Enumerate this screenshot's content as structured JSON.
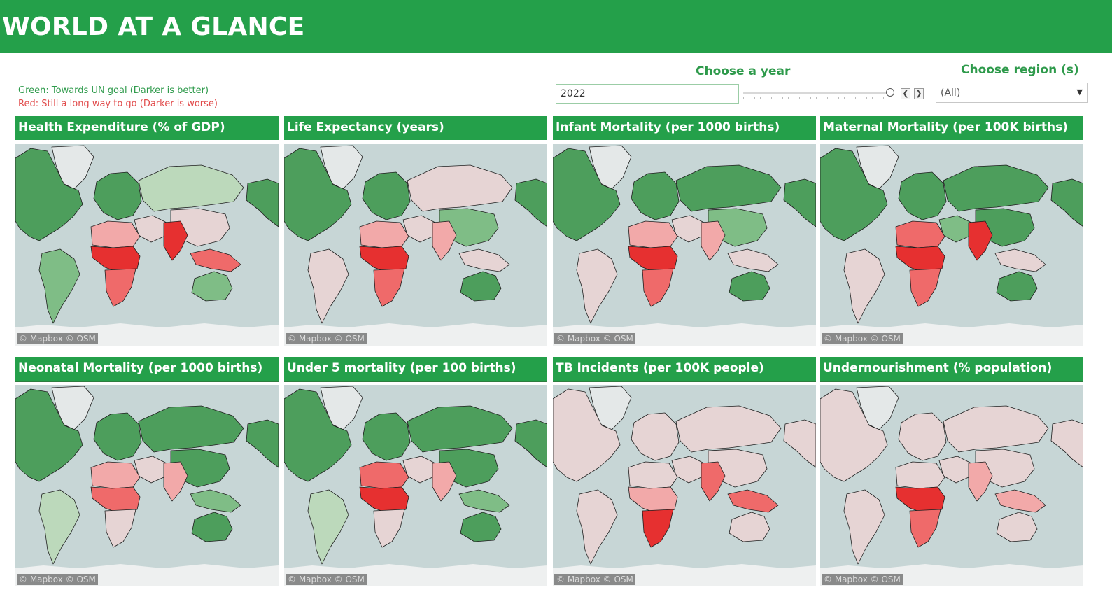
{
  "header": {
    "title": "WORLD AT A GLANCE"
  },
  "legend": {
    "green": "Green: Towards UN goal (Darker is better)",
    "red": "Red: Still a long way to go (Darker is worse)"
  },
  "year_filter": {
    "label": "Choose a year",
    "value": "2022",
    "slider_level": 1.0
  },
  "region_filter": {
    "label": "Choose region (s)",
    "value": "(All)"
  },
  "colors": {
    "header": "#24a04a",
    "ocean": "#c7d6d6",
    "green_dark": "#4d9e5c",
    "green_mid": "#7fbd86",
    "green_light": "#bcd9bb",
    "neutral": "#e6d4d4",
    "red_light": "#f2a9a9",
    "red_mid": "#ef6a6a",
    "red_dark": "#e63030"
  },
  "panels": [
    {
      "title": "Health Expenditure (% of GDP)",
      "attribution": "© Mapbox © OSM",
      "shading": {
        "north_america": "green_dark",
        "greenland": "ice",
        "south_america": "green_mid",
        "europe": "green_dark",
        "russia": "green_light",
        "middle_east": "neutral",
        "north_africa": "red_light",
        "central_africa": "red_dark",
        "southern_africa": "red_mid",
        "south_asia": "red_dark",
        "east_asia": "neutral",
        "southeast_asia": "red_mid",
        "australia": "green_mid"
      }
    },
    {
      "title": "Life Expectancy (years)",
      "attribution": "© Mapbox © OSM",
      "shading": {
        "north_america": "green_dark",
        "greenland": "ice",
        "south_america": "neutral",
        "europe": "green_dark",
        "russia": "neutral",
        "middle_east": "neutral",
        "north_africa": "red_light",
        "central_africa": "red_dark",
        "southern_africa": "red_mid",
        "south_asia": "red_light",
        "east_asia": "green_mid",
        "southeast_asia": "neutral",
        "australia": "green_dark"
      }
    },
    {
      "title": "Infant Mortality (per 1000 births)",
      "attribution": "© Mapbox © OSM",
      "shading": {
        "north_america": "green_dark",
        "greenland": "ice",
        "south_america": "neutral",
        "europe": "green_dark",
        "russia": "green_dark",
        "middle_east": "neutral",
        "north_africa": "red_light",
        "central_africa": "red_dark",
        "southern_africa": "red_mid",
        "south_asia": "red_light",
        "east_asia": "green_mid",
        "southeast_asia": "neutral",
        "australia": "green_dark"
      }
    },
    {
      "title": "Maternal Mortality (per 100K births)",
      "attribution": "© Mapbox © OSM",
      "shading": {
        "north_america": "green_dark",
        "greenland": "ice",
        "south_america": "neutral",
        "europe": "green_dark",
        "russia": "green_dark",
        "middle_east": "green_mid",
        "north_africa": "red_mid",
        "central_africa": "red_dark",
        "southern_africa": "red_mid",
        "south_asia": "red_dark",
        "east_asia": "green_dark",
        "southeast_asia": "neutral",
        "australia": "green_dark"
      }
    },
    {
      "title": "Neonatal Mortality (per 1000 births)",
      "attribution": "© Mapbox © OSM",
      "shading": {
        "north_america": "green_dark",
        "greenland": "ice",
        "south_america": "green_light",
        "europe": "green_dark",
        "russia": "green_dark",
        "middle_east": "neutral",
        "north_africa": "red_light",
        "central_africa": "red_mid",
        "southern_africa": "neutral",
        "south_asia": "red_light",
        "east_asia": "green_dark",
        "southeast_asia": "green_mid",
        "australia": "green_dark"
      }
    },
    {
      "title": "Under 5 mortality (per 100 births)",
      "attribution": "© Mapbox © OSM",
      "shading": {
        "north_america": "green_dark",
        "greenland": "ice",
        "south_america": "green_light",
        "europe": "green_dark",
        "russia": "green_dark",
        "middle_east": "neutral",
        "north_africa": "red_mid",
        "central_africa": "red_dark",
        "southern_africa": "neutral",
        "south_asia": "red_light",
        "east_asia": "green_dark",
        "southeast_asia": "green_mid",
        "australia": "green_dark"
      }
    },
    {
      "title": "TB Incidents (per 100K people)",
      "attribution": "© Mapbox © OSM",
      "shading": {
        "north_america": "neutral",
        "greenland": "ice",
        "south_america": "neutral",
        "europe": "neutral",
        "russia": "neutral",
        "middle_east": "neutral",
        "north_africa": "neutral",
        "central_africa": "red_light",
        "southern_africa": "red_dark",
        "south_asia": "red_mid",
        "east_asia": "neutral",
        "southeast_asia": "red_mid",
        "australia": "neutral"
      }
    },
    {
      "title": "Undernourishment (% population)",
      "attribution": "© Mapbox © OSM",
      "shading": {
        "north_america": "neutral",
        "greenland": "ice",
        "south_america": "neutral",
        "europe": "neutral",
        "russia": "neutral",
        "middle_east": "neutral",
        "north_africa": "neutral",
        "central_africa": "red_dark",
        "southern_africa": "red_mid",
        "south_asia": "red_light",
        "east_asia": "neutral",
        "southeast_asia": "red_light",
        "australia": "neutral"
      }
    }
  ]
}
